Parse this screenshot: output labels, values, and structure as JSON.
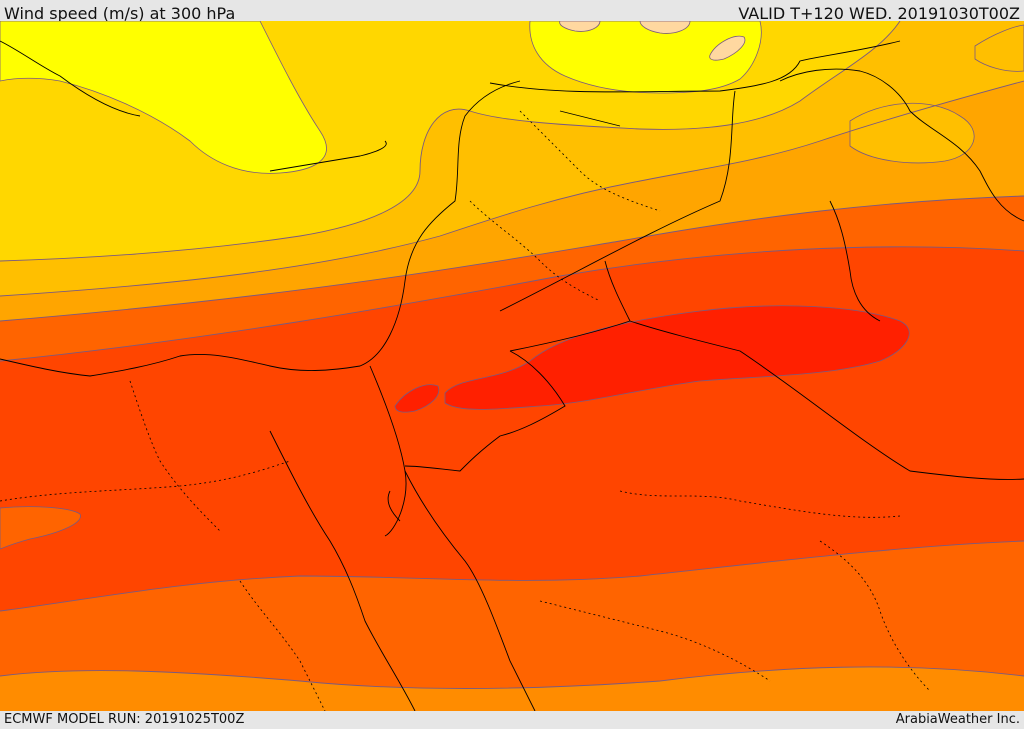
{
  "header": {
    "title": "Wind speed (m/s) at 300 hPa",
    "valid": "VALID T+120 WED. 20191030T00Z"
  },
  "footer": {
    "model_run": "ECMWF MODEL RUN: 20191025T00Z",
    "credit": "ArabiaWeather Inc."
  },
  "map": {
    "field": "wind speed",
    "level": "300 hPa",
    "colors": {
      "band_1": "#ffd27f",
      "band_2": "#ffff00",
      "band_3": "#ffd700",
      "band_4": "#ffbf00",
      "band_5": "#ffa500",
      "band_6": "#ff8c00",
      "band_7": "#ff6400",
      "band_8": "#ff4500",
      "band_9": "#ff2000",
      "contour": "#7a5a80",
      "coastline": "#000000"
    }
  }
}
